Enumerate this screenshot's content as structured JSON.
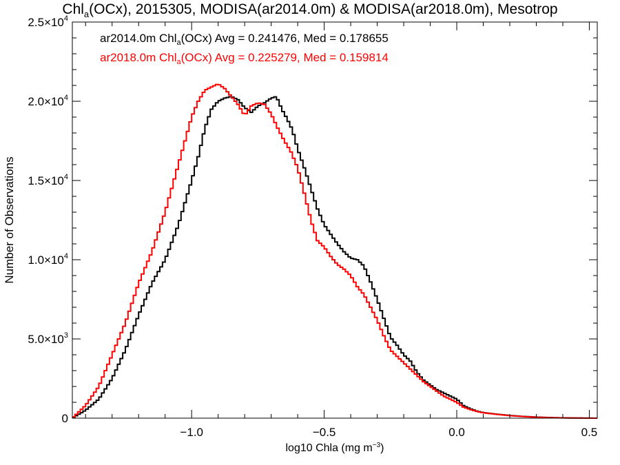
{
  "chart_data": {
    "type": "line",
    "title": {
      "pre": "Chl",
      "sub": "a",
      "post": "(OCx), 2015305, MODISA(ar2014.0m) & MODISA(ar2018.0m), Mesotrop"
    },
    "xlabel": {
      "pre": "log10 Chla (mg m",
      "sup": "−3",
      "post": ")"
    },
    "ylabel": "Number of Observations",
    "xlim": [
      -1.45,
      0.53
    ],
    "ylim": [
      0,
      25000
    ],
    "x_ticks": [
      {
        "value": -1.0,
        "label": "−1.0"
      },
      {
        "value": -0.5,
        "label": "−0.5"
      },
      {
        "value": 0.0,
        "label": "0.0"
      },
      {
        "value": 0.5,
        "label": "0.5"
      }
    ],
    "y_ticks": [
      {
        "value": 0,
        "mant": "0",
        "exp": ""
      },
      {
        "value": 5000,
        "mant": "5.0×10",
        "exp": "3"
      },
      {
        "value": 10000,
        "mant": "1.0×10",
        "exp": "4"
      },
      {
        "value": 15000,
        "mant": "1.5×10",
        "exp": "4"
      },
      {
        "value": 20000,
        "mant": "2.0×10",
        "exp": "4"
      },
      {
        "value": 25000,
        "mant": "2.5×10",
        "exp": "4"
      }
    ],
    "legend_position": "top-left",
    "series": [
      {
        "color": "#000000",
        "legend": {
          "pre": "ar2014.0m Chl",
          "sub": "a",
          "post": "(OCx) Avg = 0.241476, Med = 0.178655"
        },
        "points": [
          [
            -1.45,
            0
          ],
          [
            -1.4,
            500
          ],
          [
            -1.35,
            1200
          ],
          [
            -1.3,
            2500
          ],
          [
            -1.25,
            4300
          ],
          [
            -1.2,
            6500
          ],
          [
            -1.15,
            8500
          ],
          [
            -1.1,
            10000
          ],
          [
            -1.05,
            12200
          ],
          [
            -1.0,
            15000
          ],
          [
            -0.975,
            16500
          ],
          [
            -0.95,
            18300
          ],
          [
            -0.925,
            19500
          ],
          [
            -0.9,
            20000
          ],
          [
            -0.875,
            20200
          ],
          [
            -0.85,
            20300
          ],
          [
            -0.825,
            20100
          ],
          [
            -0.8,
            19600
          ],
          [
            -0.775,
            19300
          ],
          [
            -0.75,
            19700
          ],
          [
            -0.725,
            19900
          ],
          [
            -0.7,
            20200
          ],
          [
            -0.68,
            20300
          ],
          [
            -0.66,
            19500
          ],
          [
            -0.64,
            18900
          ],
          [
            -0.62,
            18200
          ],
          [
            -0.6,
            17000
          ],
          [
            -0.575,
            15800
          ],
          [
            -0.55,
            14500
          ],
          [
            -0.525,
            13200
          ],
          [
            -0.5,
            12200
          ],
          [
            -0.475,
            11600
          ],
          [
            -0.45,
            11000
          ],
          [
            -0.425,
            10500
          ],
          [
            -0.4,
            10100
          ],
          [
            -0.375,
            10000
          ],
          [
            -0.35,
            9600
          ],
          [
            -0.325,
            8600
          ],
          [
            -0.3,
            7500
          ],
          [
            -0.275,
            6300
          ],
          [
            -0.25,
            5100
          ],
          [
            -0.225,
            4600
          ],
          [
            -0.2,
            4000
          ],
          [
            -0.175,
            3600
          ],
          [
            -0.15,
            2900
          ],
          [
            -0.125,
            2400
          ],
          [
            -0.1,
            2100
          ],
          [
            -0.075,
            1800
          ],
          [
            -0.05,
            1600
          ],
          [
            -0.025,
            1400
          ],
          [
            0.0,
            1200
          ],
          [
            0.025,
            800
          ],
          [
            0.05,
            600
          ],
          [
            0.075,
            450
          ],
          [
            0.1,
            350
          ],
          [
            0.15,
            250
          ],
          [
            0.2,
            170
          ],
          [
            0.25,
            110
          ],
          [
            0.3,
            70
          ],
          [
            0.35,
            40
          ],
          [
            0.4,
            20
          ],
          [
            0.45,
            10
          ],
          [
            0.53,
            0
          ]
        ]
      },
      {
        "color": "#ff0000",
        "legend": {
          "pre": "ar2018.0m Chl",
          "sub": "a",
          "post": "(OCx) Avg = 0.225279, Med = 0.159814"
        },
        "points": [
          [
            -1.45,
            0
          ],
          [
            -1.4,
            800
          ],
          [
            -1.35,
            2000
          ],
          [
            -1.3,
            4000
          ],
          [
            -1.25,
            6000
          ],
          [
            -1.2,
            8500
          ],
          [
            -1.15,
            10500
          ],
          [
            -1.1,
            13000
          ],
          [
            -1.05,
            16000
          ],
          [
            -1.025,
            17500
          ],
          [
            -1.0,
            19000
          ],
          [
            -0.975,
            20000
          ],
          [
            -0.95,
            20700
          ],
          [
            -0.925,
            20900
          ],
          [
            -0.9,
            21100
          ],
          [
            -0.875,
            20800
          ],
          [
            -0.85,
            20300
          ],
          [
            -0.825,
            19800
          ],
          [
            -0.8,
            19100
          ],
          [
            -0.775,
            19700
          ],
          [
            -0.75,
            19900
          ],
          [
            -0.725,
            19800
          ],
          [
            -0.7,
            19200
          ],
          [
            -0.675,
            18300
          ],
          [
            -0.65,
            17500
          ],
          [
            -0.625,
            16800
          ],
          [
            -0.6,
            15800
          ],
          [
            -0.575,
            14200
          ],
          [
            -0.55,
            12500
          ],
          [
            -0.525,
            11200
          ],
          [
            -0.5,
            10800
          ],
          [
            -0.475,
            10200
          ],
          [
            -0.45,
            9700
          ],
          [
            -0.425,
            9400
          ],
          [
            -0.4,
            9000
          ],
          [
            -0.375,
            8300
          ],
          [
            -0.35,
            7800
          ],
          [
            -0.325,
            7000
          ],
          [
            -0.3,
            6200
          ],
          [
            -0.275,
            5200
          ],
          [
            -0.25,
            4300
          ],
          [
            -0.225,
            3900
          ],
          [
            -0.2,
            3500
          ],
          [
            -0.175,
            3100
          ],
          [
            -0.15,
            2700
          ],
          [
            -0.125,
            2300
          ],
          [
            -0.1,
            2000
          ],
          [
            -0.075,
            1700
          ],
          [
            -0.05,
            1400
          ],
          [
            -0.025,
            1200
          ],
          [
            0.0,
            1000
          ],
          [
            0.025,
            700
          ],
          [
            0.05,
            550
          ],
          [
            0.075,
            430
          ],
          [
            0.1,
            340
          ],
          [
            0.15,
            240
          ],
          [
            0.2,
            160
          ],
          [
            0.25,
            100
          ],
          [
            0.3,
            60
          ],
          [
            0.35,
            30
          ],
          [
            0.4,
            15
          ],
          [
            0.45,
            8
          ],
          [
            0.53,
            0
          ]
        ]
      }
    ]
  }
}
